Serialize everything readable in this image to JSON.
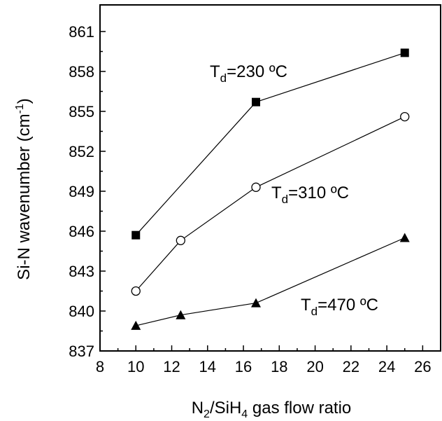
{
  "chart_data": {
    "type": "line",
    "xlabel": {
      "pre": "N",
      "sub1": "2",
      "mid": "/SiH",
      "sub2": "4",
      "post": " gas flow ratio"
    },
    "ylabel": {
      "pre": "Si-N wavenumber (cm",
      "sup": "-1",
      "post": ")"
    },
    "xlim": [
      8,
      27
    ],
    "ylim": [
      837,
      863
    ],
    "xticks": [
      8,
      10,
      12,
      14,
      16,
      18,
      20,
      22,
      24,
      26
    ],
    "yticks": [
      837,
      840,
      843,
      846,
      849,
      852,
      855,
      858,
      861
    ],
    "grid": false,
    "series": [
      {
        "label": {
          "pre": "T",
          "sub": "d",
          "post": "=230 ºC"
        },
        "marker": "filled-square",
        "x": [
          10,
          16.7,
          25
        ],
        "y": [
          845.7,
          855.7,
          859.4
        ]
      },
      {
        "label": {
          "pre": "T",
          "sub": "d",
          "post": "=310 ºC"
        },
        "marker": "open-circle",
        "x": [
          10,
          12.5,
          16.7,
          25
        ],
        "y": [
          841.5,
          845.3,
          849.3,
          854.6
        ]
      },
      {
        "label": {
          "pre": "T",
          "sub": "d",
          "post": "=470 ºC"
        },
        "marker": "filled-triangle",
        "x": [
          10,
          12.5,
          16.7,
          25
        ],
        "y": [
          838.9,
          839.7,
          840.6,
          845.5
        ]
      }
    ]
  }
}
